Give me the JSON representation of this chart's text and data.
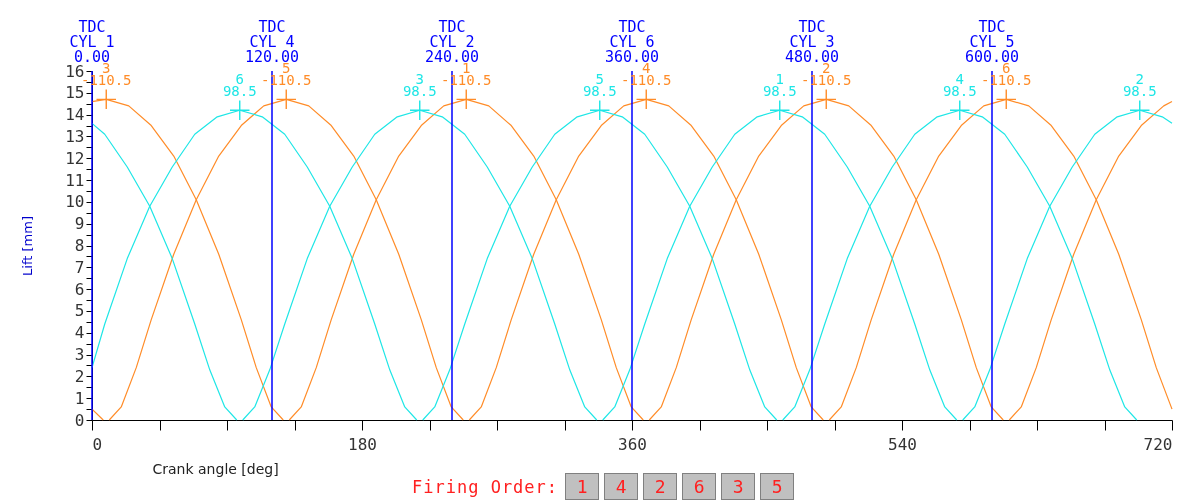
{
  "chart_data": {
    "type": "line",
    "xlabel": "Crank angle [deg]",
    "ylabel": "Lift [mm]",
    "xlim": [
      0,
      720
    ],
    "ylim": [
      0,
      16
    ],
    "xticks": [
      0,
      {
        "value": 45,
        "label": null
      },
      {
        "value": 90,
        "label": null
      },
      {
        "value": 135,
        "label": null
      },
      180,
      {
        "value": 225,
        "label": null
      },
      {
        "value": 270,
        "label": null
      },
      {
        "value": 315,
        "label": null
      },
      360,
      {
        "value": 405,
        "label": null
      },
      {
        "value": 450,
        "label": null
      },
      {
        "value": 495,
        "label": null
      },
      540,
      {
        "value": 585,
        "label": null
      },
      {
        "value": 630,
        "label": null
      },
      {
        "value": 675,
        "label": null
      },
      720
    ],
    "yticks": [
      0,
      {
        "value": 0.5,
        "label": null
      },
      1,
      {
        "value": 1.5,
        "label": null
      },
      2,
      {
        "value": 2.5,
        "label": null
      },
      3,
      {
        "value": 3.5,
        "label": null
      },
      4,
      {
        "value": 4.5,
        "label": null
      },
      5,
      {
        "value": 5.5,
        "label": null
      },
      6,
      {
        "value": 6.5,
        "label": null
      },
      7,
      {
        "value": 7.5,
        "label": null
      },
      8,
      {
        "value": 8.5,
        "label": null
      },
      9,
      {
        "value": 9.5,
        "label": null
      },
      10,
      {
        "value": 10.5,
        "label": null
      },
      11,
      {
        "value": 11.5,
        "label": null
      },
      12,
      {
        "value": 12.5,
        "label": null
      },
      13,
      {
        "value": 13.5,
        "label": null
      },
      14,
      {
        "value": 14.5,
        "label": null
      },
      15,
      {
        "value": 15.5,
        "label": null
      },
      16
    ],
    "series": [
      {
        "type": "line",
        "color": "#ff8c28",
        "x": [
          0,
          9.5,
          24.5,
          39.5,
          54.5,
          69.5,
          84.5,
          99.5,
          109.5,
          119.5,
          127.5
        ],
        "values": [
          14.6,
          14.7,
          14.4,
          13.5,
          12.1,
          10.1,
          7.6,
          4.6,
          2.4,
          0.6,
          0
        ]
      },
      {
        "type": "line",
        "color": "#ff8c28",
        "x": [
          11.5,
          19.5,
          29.5,
          39.5,
          54.5,
          69.5,
          84.5,
          99.5,
          114.5,
          129.5,
          144.5,
          159.5,
          174.5,
          189.5,
          204.5,
          219.5,
          229.5,
          239.5,
          247.5
        ],
        "values": [
          0,
          0.6,
          2.4,
          4.6,
          7.6,
          10.1,
          12.1,
          13.5,
          14.4,
          14.7,
          14.4,
          13.5,
          12.1,
          10.1,
          7.6,
          4.6,
          2.4,
          0.6,
          0
        ]
      },
      {
        "type": "line",
        "color": "#ff8c28",
        "x": [
          131.5,
          139.5,
          149.5,
          159.5,
          174.5,
          189.5,
          204.5,
          219.5,
          234.5,
          249.5,
          264.5,
          279.5,
          294.5,
          309.5,
          324.5,
          339.5,
          349.5,
          359.5,
          367.5
        ],
        "values": [
          0,
          0.6,
          2.4,
          4.6,
          7.6,
          10.1,
          12.1,
          13.5,
          14.4,
          14.7,
          14.4,
          13.5,
          12.1,
          10.1,
          7.6,
          4.6,
          2.4,
          0.6,
          0
        ]
      },
      {
        "type": "line",
        "color": "#ff8c28",
        "x": [
          251.5,
          259.5,
          269.5,
          279.5,
          294.5,
          309.5,
          324.5,
          339.5,
          354.5,
          369.5,
          384.5,
          399.5,
          414.5,
          429.5,
          444.5,
          459.5,
          469.5,
          479.5,
          487.5
        ],
        "values": [
          0,
          0.6,
          2.4,
          4.6,
          7.6,
          10.1,
          12.1,
          13.5,
          14.4,
          14.7,
          14.4,
          13.5,
          12.1,
          10.1,
          7.6,
          4.6,
          2.4,
          0.6,
          0
        ]
      },
      {
        "type": "line",
        "color": "#ff8c28",
        "x": [
          371.5,
          379.5,
          389.5,
          399.5,
          414.5,
          429.5,
          444.5,
          459.5,
          474.5,
          489.5,
          504.5,
          519.5,
          534.5,
          549.5,
          564.5,
          579.5,
          589.5,
          599.5,
          607.5
        ],
        "values": [
          0,
          0.6,
          2.4,
          4.6,
          7.6,
          10.1,
          12.1,
          13.5,
          14.4,
          14.7,
          14.4,
          13.5,
          12.1,
          10.1,
          7.6,
          4.6,
          2.4,
          0.6,
          0
        ]
      },
      {
        "type": "line",
        "color": "#ff8c28",
        "x": [
          491.5,
          499.5,
          509.5,
          519.5,
          534.5,
          549.5,
          564.5,
          579.5,
          594.5,
          609.5,
          624.5,
          639.5,
          654.5,
          669.5,
          684.5,
          699.5,
          709.5,
          720
        ],
        "values": [
          0,
          0.6,
          2.4,
          4.6,
          7.6,
          10.1,
          12.1,
          13.5,
          14.4,
          14.7,
          14.4,
          13.5,
          12.1,
          10.1,
          7.6,
          4.6,
          2.4,
          0.5
        ]
      },
      {
        "type": "line",
        "color": "#ff8c28",
        "x": [
          0,
          7.5
        ],
        "values": [
          0.5,
          0
        ]
      },
      {
        "type": "line",
        "color": "#ff8c28",
        "x": [
          611.5,
          619.5,
          629.5,
          639.5,
          654.5,
          669.5,
          684.5,
          699.5,
          714.5,
          720
        ],
        "values": [
          0,
          0.6,
          2.4,
          4.6,
          7.6,
          10.1,
          12.1,
          13.5,
          14.4,
          14.6
        ]
      },
      {
        "type": "line",
        "color": "#1ee6e6",
        "x": [
          0,
          8.5,
          23.5,
          38.5,
          53.5,
          68.5,
          78.5,
          88.5,
          96.5
        ],
        "values": [
          13.6,
          13.1,
          11.6,
          9.8,
          7.4,
          4.4,
          2.3,
          0.6,
          0
        ]
      },
      {
        "type": "line",
        "color": "#1ee6e6",
        "x": [
          0,
          8.5,
          23.5,
          38.5,
          53.5,
          68.5,
          83.5,
          98.5,
          113.5,
          128.5,
          143.5,
          158.5,
          173.5,
          188.5,
          198.5,
          208.5,
          216.5
        ],
        "values": [
          2.4,
          4.4,
          7.4,
          9.8,
          11.6,
          13.1,
          13.9,
          14.2,
          13.9,
          13.1,
          11.6,
          9.8,
          7.4,
          4.4,
          2.3,
          0.6,
          0
        ]
      },
      {
        "type": "line",
        "color": "#1ee6e6",
        "x": [
          100.5,
          108.5,
          118.5,
          128.5,
          143.5,
          158.5,
          173.5,
          188.5,
          203.5,
          218.5,
          233.5,
          248.5,
          263.5,
          278.5,
          293.5,
          308.5,
          318.5,
          328.5,
          336.5
        ],
        "values": [
          0,
          0.6,
          2.3,
          4.4,
          7.4,
          9.8,
          11.6,
          13.1,
          13.9,
          14.2,
          13.9,
          13.1,
          11.6,
          9.8,
          7.4,
          4.4,
          2.3,
          0.6,
          0
        ]
      },
      {
        "type": "line",
        "color": "#1ee6e6",
        "x": [
          220.5,
          228.5,
          238.5,
          248.5,
          263.5,
          278.5,
          293.5,
          308.5,
          323.5,
          338.5,
          353.5,
          368.5,
          383.5,
          398.5,
          413.5,
          428.5,
          438.5,
          448.5,
          456.5
        ],
        "values": [
          0,
          0.6,
          2.3,
          4.4,
          7.4,
          9.8,
          11.6,
          13.1,
          13.9,
          14.2,
          13.9,
          13.1,
          11.6,
          9.8,
          7.4,
          4.4,
          2.3,
          0.6,
          0
        ]
      },
      {
        "type": "line",
        "color": "#1ee6e6",
        "x": [
          340.5,
          348.5,
          358.5,
          368.5,
          383.5,
          398.5,
          413.5,
          428.5,
          443.5,
          458.5,
          473.5,
          488.5,
          503.5,
          518.5,
          533.5,
          548.5,
          558.5,
          568.5,
          576.5
        ],
        "values": [
          0,
          0.6,
          2.3,
          4.4,
          7.4,
          9.8,
          11.6,
          13.1,
          13.9,
          14.2,
          13.9,
          13.1,
          11.6,
          9.8,
          7.4,
          4.4,
          2.3,
          0.6,
          0
        ]
      },
      {
        "type": "line",
        "color": "#1ee6e6",
        "x": [
          460.5,
          468.5,
          478.5,
          488.5,
          503.5,
          518.5,
          533.5,
          548.5,
          563.5,
          578.5,
          593.5,
          608.5,
          623.5,
          638.5,
          653.5,
          668.5,
          678.5,
          688.5,
          696.5
        ],
        "values": [
          0,
          0.6,
          2.3,
          4.4,
          7.4,
          9.8,
          11.6,
          13.1,
          13.9,
          14.2,
          13.9,
          13.1,
          11.6,
          9.8,
          7.4,
          4.4,
          2.3,
          0.6,
          0
        ]
      },
      {
        "type": "line",
        "color": "#1ee6e6",
        "x": [
          580.5,
          588.5,
          598.5,
          608.5,
          623.5,
          638.5,
          653.5,
          668.5,
          683.5,
          698.5,
          713.5,
          720
        ],
        "values": [
          0,
          0.6,
          2.3,
          4.4,
          7.4,
          9.8,
          11.6,
          13.1,
          13.9,
          14.2,
          13.9,
          13.6
        ]
      },
      {
        "type": "scatter",
        "marker": "cross",
        "color": "#ff8c28",
        "x": [
          9.5,
          129.5,
          249.5,
          369.5,
          489.5,
          609.5
        ],
        "values": [
          14.7,
          14.7,
          14.7,
          14.7,
          14.7,
          14.7
        ]
      },
      {
        "type": "scatter",
        "marker": "cross",
        "color": "#1ee6e6",
        "x": [
          98.5,
          218.5,
          338.5,
          458.5,
          578.5,
          698.5
        ],
        "values": [
          14.2,
          14.2,
          14.2,
          14.2,
          14.2,
          14.2
        ]
      }
    ],
    "ref_lines": [
      {
        "axis": "x",
        "value": 0,
        "label": "TDC\nCYL 1\n0.00",
        "color": "#0000ff"
      },
      {
        "axis": "x",
        "value": 120,
        "label": "TDC\nCYL 4\n120.00",
        "color": "#0000ff"
      },
      {
        "axis": "x",
        "value": 240,
        "label": "TDC\nCYL 2\n240.00",
        "color": "#0000ff"
      },
      {
        "axis": "x",
        "value": 360,
        "label": "TDC\nCYL 6\n360.00",
        "color": "#0000ff"
      },
      {
        "axis": "x",
        "value": 480,
        "label": "TDC\nCYL 3\n480.00",
        "color": "#0000ff"
      },
      {
        "axis": "x",
        "value": 600,
        "label": "TDC\nCYL 5\n600.00",
        "color": "#0000ff"
      }
    ],
    "annotations": [
      {
        "text": "3",
        "x": 9.5,
        "y": 14.7
      },
      {
        "text": "-110.5",
        "x": 9.5,
        "y": 14.7
      },
      {
        "text": "5",
        "x": 129.5,
        "y": 14.7
      },
      {
        "text": "-110.5",
        "x": 129.5,
        "y": 14.7
      },
      {
        "text": "1",
        "x": 249.5,
        "y": 14.7
      },
      {
        "text": "-110.5",
        "x": 249.5,
        "y": 14.7
      },
      {
        "text": "4",
        "x": 369.5,
        "y": 14.7
      },
      {
        "text": "-110.5",
        "x": 369.5,
        "y": 14.7
      },
      {
        "text": "2",
        "x": 489.5,
        "y": 14.7
      },
      {
        "text": "-110.5",
        "x": 489.5,
        "y": 14.7
      },
      {
        "text": "6",
        "x": 609.5,
        "y": 14.7
      },
      {
        "text": "-110.5",
        "x": 609.5,
        "y": 14.7
      },
      {
        "text": "6",
        "x": 98.5,
        "y": 14.2
      },
      {
        "text": "98.5",
        "x": 98.5,
        "y": 14.2
      },
      {
        "text": "3",
        "x": 218.5,
        "y": 14.2
      },
      {
        "text": "98.5",
        "x": 218.5,
        "y": 14.2
      },
      {
        "text": "5",
        "x": 338.5,
        "y": 14.2
      },
      {
        "text": "98.5",
        "x": 338.5,
        "y": 14.2
      },
      {
        "text": "1",
        "x": 458.5,
        "y": 14.2
      },
      {
        "text": "98.5",
        "x": 458.5,
        "y": 14.2
      },
      {
        "text": "4",
        "x": 578.5,
        "y": 14.2
      },
      {
        "text": "98.5",
        "x": 578.5,
        "y": 14.2
      },
      {
        "text": "2",
        "x": 698.5,
        "y": 14.2
      },
      {
        "text": "98.5",
        "x": 698.5,
        "y": 14.2
      },
      "Firing Order:",
      "1",
      "4",
      "2",
      "6",
      "3",
      "5"
    ]
  }
}
